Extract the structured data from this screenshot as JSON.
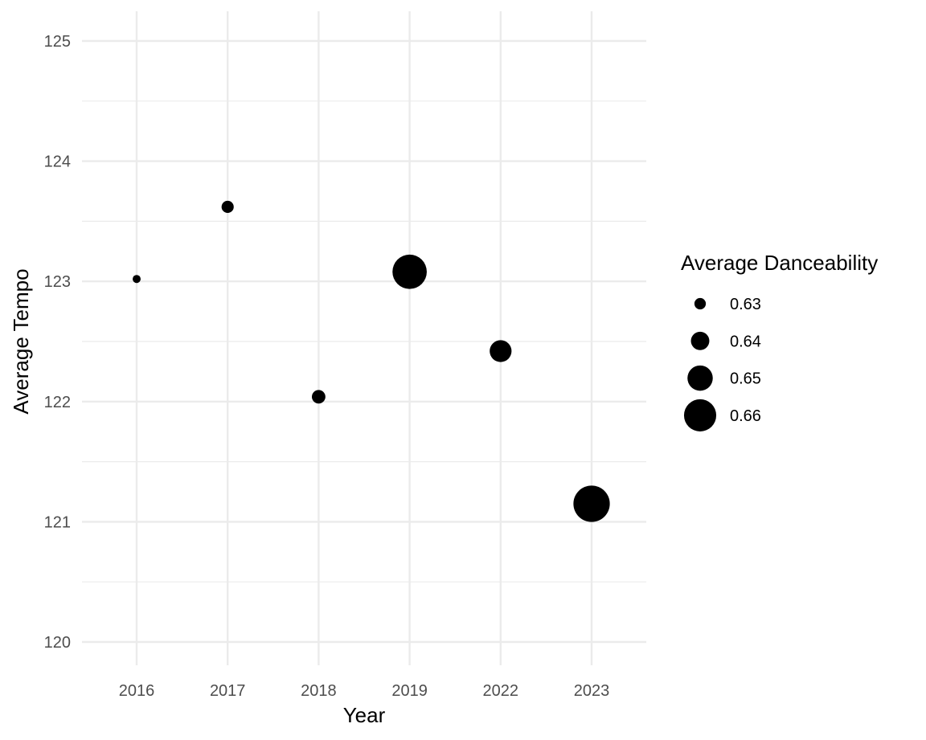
{
  "chart_data": {
    "type": "scatter",
    "categories": [
      "2016",
      "2017",
      "2018",
      "2019",
      "2022",
      "2023"
    ],
    "points": [
      {
        "x": "2016",
        "y": 123.02,
        "size": 0.625
      },
      {
        "x": "2017",
        "y": 123.62,
        "size": 0.631
      },
      {
        "x": "2018",
        "y": 122.04,
        "size": 0.633
      },
      {
        "x": "2019",
        "y": 123.08,
        "size": 0.663
      },
      {
        "x": "2022",
        "y": 122.42,
        "size": 0.645
      },
      {
        "x": "2023",
        "y": 121.15,
        "size": 0.666
      }
    ],
    "xlabel": "Year",
    "ylabel": "Average Tempo",
    "ylim": [
      120,
      125
    ],
    "yticks": [
      "120",
      "121",
      "122",
      "123",
      "124",
      "125"
    ],
    "grid": true,
    "legend": {
      "title": "Average Danceability",
      "placement": "right",
      "entries": [
        {
          "label": "0.63",
          "value": 0.63
        },
        {
          "label": "0.64",
          "value": 0.64
        },
        {
          "label": "0.65",
          "value": 0.65
        },
        {
          "label": "0.66",
          "value": 0.66
        }
      ]
    },
    "colors": {
      "point": "#000000",
      "grid": "#ebebeb"
    }
  }
}
